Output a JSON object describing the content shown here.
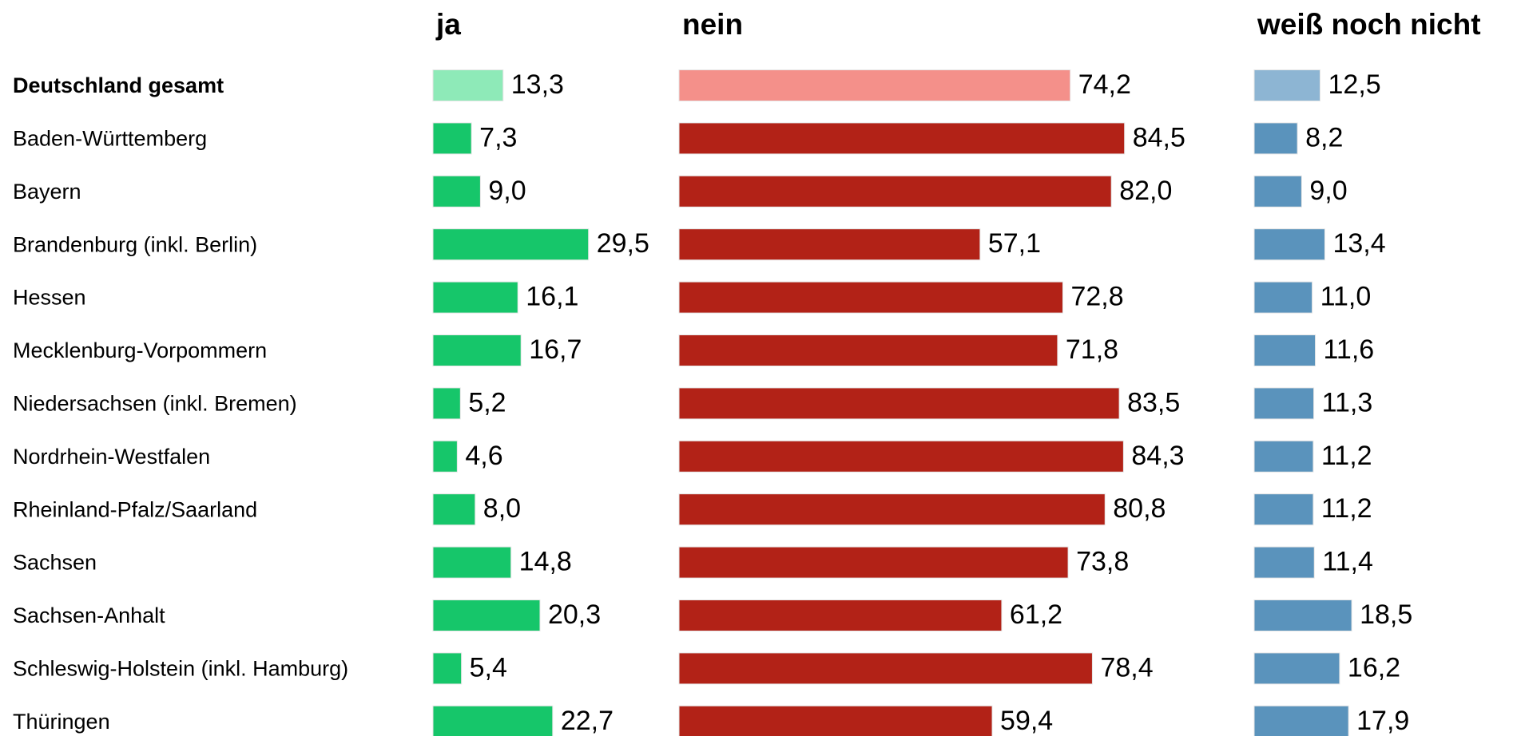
{
  "chart_data": {
    "type": "bar",
    "orientation": "horizontal",
    "categories": [
      "Deutschland gesamt",
      "Baden-Württemberg",
      "Bayern",
      "Brandenburg (inkl. Berlin)",
      "Hessen",
      "Mecklenburg-Vorpommern",
      "Niedersachsen (inkl. Bremen)",
      "Nordrhein-Westfalen",
      "Rheinland-Pfalz/Saarland",
      "Sachsen",
      "Sachsen-Anhalt",
      "Schleswig-Holstein (inkl. Hamburg)",
      "Thüringen"
    ],
    "bold_categories": [
      0
    ],
    "series": [
      {
        "name": "ja",
        "color": "#16c66a",
        "colors": [
          "#8eeab8",
          "#16c66a",
          "#16c66a",
          "#16c66a",
          "#16c66a",
          "#16c66a",
          "#16c66a",
          "#16c66a",
          "#16c66a",
          "#16c66a",
          "#16c66a",
          "#16c66a",
          "#16c66a"
        ],
        "values": [
          13.3,
          7.3,
          9.0,
          29.5,
          16.1,
          16.7,
          5.2,
          4.6,
          8.0,
          14.8,
          20.3,
          5.4,
          22.7
        ],
        "value_labels": [
          "13,3",
          "7,3",
          "9,0",
          "29,5",
          "16,1",
          "16,7",
          "5,2",
          "4,6",
          "8,0",
          "14,8",
          "20,3",
          "5,4",
          "22,7"
        ]
      },
      {
        "name": "nein",
        "color": "#b22217",
        "colors": [
          "#f4908a",
          "#b22217",
          "#b22217",
          "#b22217",
          "#b22217",
          "#b22217",
          "#b22217",
          "#b22217",
          "#b22217",
          "#b22217",
          "#b22217",
          "#b22217",
          "#b22217"
        ],
        "values": [
          74.2,
          84.5,
          82.0,
          57.1,
          72.8,
          71.8,
          83.5,
          84.3,
          80.8,
          73.8,
          61.2,
          78.4,
          59.4
        ],
        "value_labels": [
          "74,2",
          "84,5",
          "82,0",
          "57,1",
          "72,8",
          "71,8",
          "83,5",
          "84,3",
          "80,8",
          "73,8",
          "61,2",
          "78,4",
          "59,4"
        ]
      },
      {
        "name": "weiß noch nicht",
        "color": "#5a93bc",
        "colors": [
          "#8db5d3",
          "#5a93bc",
          "#5a93bc",
          "#5a93bc",
          "#5a93bc",
          "#5a93bc",
          "#5a93bc",
          "#5a93bc",
          "#5a93bc",
          "#5a93bc",
          "#5a93bc",
          "#5a93bc",
          "#5a93bc"
        ],
        "values": [
          12.5,
          8.2,
          9.0,
          13.4,
          11.0,
          11.6,
          11.3,
          11.2,
          11.2,
          11.4,
          18.5,
          16.2,
          17.9
        ],
        "value_labels": [
          "12,5",
          "8,2",
          "9,0",
          "13,4",
          "11,0",
          "11,6",
          "11,3",
          "11,2",
          "11,2",
          "11,4",
          "18,5",
          "16,2",
          "17,9"
        ]
      }
    ]
  }
}
